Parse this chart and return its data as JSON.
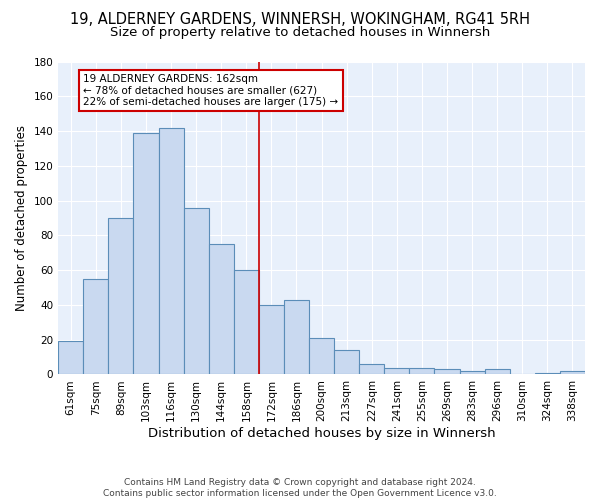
{
  "title1": "19, ALDERNEY GARDENS, WINNERSH, WOKINGHAM, RG41 5RH",
  "title2": "Size of property relative to detached houses in Winnersh",
  "xlabel": "Distribution of detached houses by size in Winnersh",
  "ylabel": "Number of detached properties",
  "categories": [
    "61sqm",
    "75sqm",
    "89sqm",
    "103sqm",
    "116sqm",
    "130sqm",
    "144sqm",
    "158sqm",
    "172sqm",
    "186sqm",
    "200sqm",
    "213sqm",
    "227sqm",
    "241sqm",
    "255sqm",
    "269sqm",
    "283sqm",
    "296sqm",
    "310sqm",
    "324sqm",
    "338sqm"
  ],
  "values": [
    19,
    55,
    90,
    139,
    142,
    96,
    75,
    60,
    40,
    43,
    21,
    14,
    6,
    4,
    4,
    3,
    2,
    3,
    0,
    1,
    2
  ],
  "bar_color": "#c9d9f0",
  "bar_edge_color": "#5b8db8",
  "vline_x": 7.5,
  "vline_color": "#cc0000",
  "annotation_text": "19 ALDERNEY GARDENS: 162sqm\n← 78% of detached houses are smaller (627)\n22% of semi-detached houses are larger (175) →",
  "annotation_box_color": "#ffffff",
  "annotation_box_edge": "#cc0000",
  "ylim": [
    0,
    180
  ],
  "yticks": [
    0,
    20,
    40,
    60,
    80,
    100,
    120,
    140,
    160,
    180
  ],
  "footer": "Contains HM Land Registry data © Crown copyright and database right 2024.\nContains public sector information licensed under the Open Government Licence v3.0.",
  "bg_color": "#e8f0fb",
  "title1_fontsize": 10.5,
  "title2_fontsize": 9.5,
  "xlabel_fontsize": 9.5,
  "ylabel_fontsize": 8.5,
  "tick_fontsize": 7.5,
  "footer_fontsize": 6.5,
  "annot_fontsize": 7.5
}
